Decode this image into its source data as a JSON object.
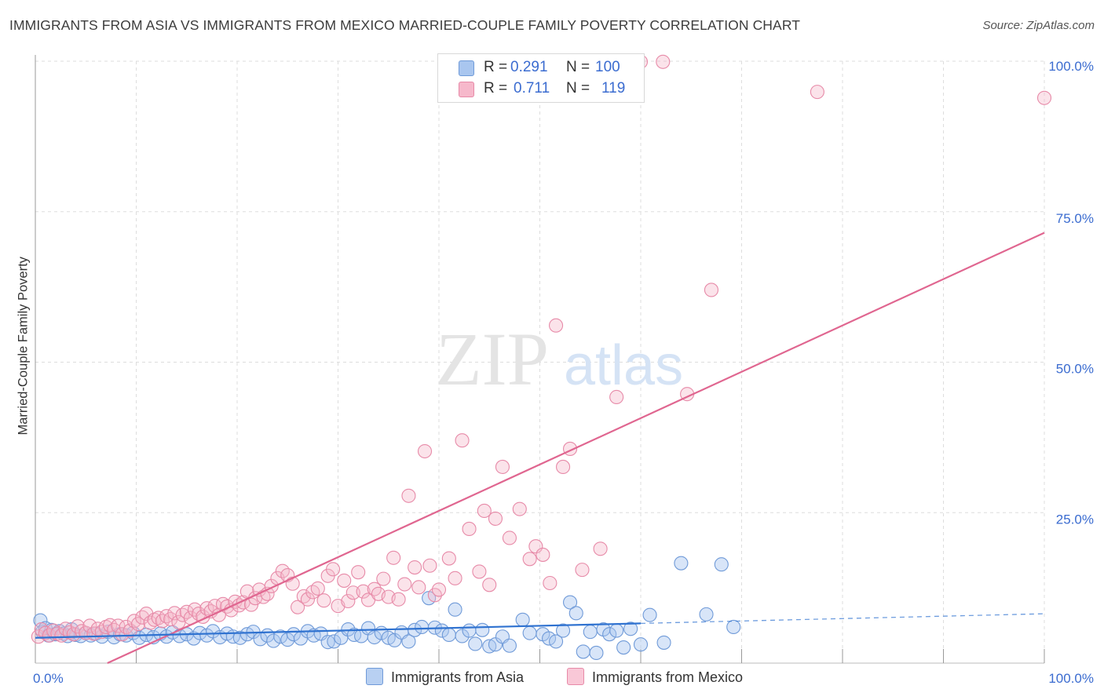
{
  "title": "IMMIGRANTS FROM ASIA VS IMMIGRANTS FROM MEXICO MARRIED-COUPLE FAMILY POVERTY CORRELATION CHART",
  "source": "Source: ZipAtlas.com",
  "watermark": {
    "zip": "ZIP",
    "atlas": "atlas"
  },
  "colors": {
    "asia_fill": "#a9c6ef",
    "asia_stroke": "#6f9ad8",
    "asia_line": "#2f72d0",
    "mexico_fill": "#f6b8cb",
    "mexico_stroke": "#e78aa8",
    "mexico_line": "#e06690",
    "tick_label": "#3b6cd0",
    "grid": "#dddddd"
  },
  "legend": {
    "rows": [
      {
        "r_label": "R =",
        "r_value": "0.291",
        "n_label": "N =",
        "n_value": "100"
      },
      {
        "r_label": "R =",
        "r_value": "0.711",
        "n_label": "N =",
        "n_value": "119"
      }
    ]
  },
  "bottom_legend": {
    "asia": "Immigrants from Asia",
    "mexico": "Immigrants from Mexico"
  },
  "chart_data": {
    "type": "scatter",
    "title": "IMMIGRANTS FROM ASIA VS IMMIGRANTS FROM MEXICO MARRIED-COUPLE FAMILY POVERTY CORRELATION CHART",
    "xlabel": "",
    "ylabel": "Married-Couple Family Poverty",
    "xlim": [
      0,
      100
    ],
    "ylim": [
      0,
      100
    ],
    "x_ticks": [
      "0.0%",
      "100.0%"
    ],
    "y_ticks": [
      {
        "value": 25,
        "label": "25.0%"
      },
      {
        "value": 50,
        "label": "50.0%"
      },
      {
        "value": 75,
        "label": "75.0%"
      },
      {
        "value": 100,
        "label": "100.0%"
      }
    ],
    "grid": true,
    "legend_position": "top-center",
    "series": [
      {
        "name": "Immigrants from Asia",
        "r": 0.291,
        "n": 100,
        "trend": {
          "x": [
            0,
            60
          ],
          "y": [
            4.2,
            6.6
          ],
          "dashed_to": [
            100,
            8.2
          ]
        },
        "points": [
          [
            0.5,
            7.1
          ],
          [
            0.7,
            5.2
          ],
          [
            1.0,
            5.8
          ],
          [
            1.3,
            4.6
          ],
          [
            1.6,
            5.5
          ],
          [
            2.0,
            4.8
          ],
          [
            2.4,
            5.3
          ],
          [
            2.8,
            4.9
          ],
          [
            3.2,
            4.5
          ],
          [
            3.6,
            5.6
          ],
          [
            4.0,
            4.7
          ],
          [
            4.5,
            4.5
          ],
          [
            5.0,
            5.0
          ],
          [
            5.5,
            4.6
          ],
          [
            6.0,
            4.9
          ],
          [
            6.6,
            4.4
          ],
          [
            7.2,
            5.2
          ],
          [
            7.8,
            4.3
          ],
          [
            8.4,
            4.8
          ],
          [
            9.0,
            4.6
          ],
          [
            9.7,
            5.0
          ],
          [
            10.3,
            4.2
          ],
          [
            11.0,
            4.7
          ],
          [
            11.7,
            4.3
          ],
          [
            12.4,
            4.9
          ],
          [
            13.0,
            4.4
          ],
          [
            13.6,
            5.1
          ],
          [
            14.3,
            4.5
          ],
          [
            15.0,
            4.8
          ],
          [
            15.7,
            4.1
          ],
          [
            16.3,
            5.0
          ],
          [
            17.0,
            4.6
          ],
          [
            17.6,
            5.3
          ],
          [
            18.3,
            4.3
          ],
          [
            19.0,
            4.9
          ],
          [
            19.6,
            4.4
          ],
          [
            20.3,
            4.2
          ],
          [
            21.0,
            4.8
          ],
          [
            21.6,
            5.2
          ],
          [
            22.3,
            4.0
          ],
          [
            23.0,
            4.6
          ],
          [
            23.6,
            3.7
          ],
          [
            24.3,
            4.4
          ],
          [
            25.0,
            3.9
          ],
          [
            25.6,
            4.8
          ],
          [
            26.3,
            4.1
          ],
          [
            27.0,
            5.3
          ],
          [
            27.6,
            4.6
          ],
          [
            28.3,
            4.9
          ],
          [
            29.0,
            3.5
          ],
          [
            29.6,
            3.6
          ],
          [
            30.3,
            4.2
          ],
          [
            31.0,
            5.6
          ],
          [
            31.6,
            4.7
          ],
          [
            32.3,
            4.5
          ],
          [
            33.0,
            5.8
          ],
          [
            33.6,
            4.3
          ],
          [
            34.3,
            5.0
          ],
          [
            35.0,
            4.2
          ],
          [
            35.6,
            3.8
          ],
          [
            36.3,
            5.1
          ],
          [
            37.0,
            3.6
          ],
          [
            37.6,
            5.5
          ],
          [
            38.3,
            6.0
          ],
          [
            39.0,
            10.8
          ],
          [
            39.6,
            5.9
          ],
          [
            40.3,
            5.4
          ],
          [
            41.0,
            4.7
          ],
          [
            41.6,
            8.9
          ],
          [
            42.3,
            4.5
          ],
          [
            43.0,
            5.4
          ],
          [
            43.6,
            3.2
          ],
          [
            44.3,
            5.5
          ],
          [
            45.0,
            2.8
          ],
          [
            45.6,
            3.1
          ],
          [
            46.3,
            4.4
          ],
          [
            47.0,
            2.9
          ],
          [
            48.3,
            7.2
          ],
          [
            49.0,
            5.0
          ],
          [
            50.3,
            4.8
          ],
          [
            50.9,
            4.1
          ],
          [
            51.6,
            3.6
          ],
          [
            52.3,
            5.4
          ],
          [
            53.0,
            10.1
          ],
          [
            53.6,
            8.3
          ],
          [
            54.3,
            1.9
          ],
          [
            55.0,
            5.2
          ],
          [
            55.6,
            1.7
          ],
          [
            56.3,
            5.6
          ],
          [
            56.9,
            4.8
          ],
          [
            57.6,
            5.4
          ],
          [
            58.3,
            2.6
          ],
          [
            59.0,
            5.7
          ],
          [
            60.0,
            3.1
          ],
          [
            60.9,
            8.0
          ],
          [
            62.3,
            3.4
          ],
          [
            64.0,
            16.6
          ],
          [
            66.5,
            8.1
          ],
          [
            68.0,
            16.4
          ],
          [
            69.2,
            6.0
          ]
        ]
      },
      {
        "name": "Immigrants from Mexico",
        "r": 0.711,
        "n": 119,
        "trend": {
          "x": [
            0,
            100
          ],
          "y": [
            -5.5,
            71.5
          ]
        },
        "points": [
          [
            0.3,
            4.4
          ],
          [
            0.6,
            5.6
          ],
          [
            1.0,
            5.0
          ],
          [
            1.4,
            4.6
          ],
          [
            1.8,
            5.4
          ],
          [
            2.2,
            4.9
          ],
          [
            2.6,
            4.6
          ],
          [
            3.0,
            5.7
          ],
          [
            3.4,
            5.1
          ],
          [
            3.8,
            4.8
          ],
          [
            4.2,
            6.1
          ],
          [
            4.6,
            5.3
          ],
          [
            5.0,
            5.0
          ],
          [
            5.4,
            6.2
          ],
          [
            5.8,
            4.9
          ],
          [
            6.2,
            5.7
          ],
          [
            6.6,
            5.2
          ],
          [
            7.0,
            6.0
          ],
          [
            7.4,
            6.3
          ],
          [
            7.8,
            5.5
          ],
          [
            8.2,
            6.2
          ],
          [
            8.6,
            4.8
          ],
          [
            9.0,
            6.0
          ],
          [
            9.4,
            5.4
          ],
          [
            9.8,
            7.0
          ],
          [
            10.2,
            6.5
          ],
          [
            10.6,
            7.6
          ],
          [
            11.0,
            8.2
          ],
          [
            11.4,
            6.7
          ],
          [
            11.8,
            7.2
          ],
          [
            12.2,
            7.5
          ],
          [
            12.6,
            7.0
          ],
          [
            13.0,
            7.8
          ],
          [
            13.4,
            7.3
          ],
          [
            13.8,
            8.3
          ],
          [
            14.2,
            6.8
          ],
          [
            14.6,
            8.0
          ],
          [
            15.0,
            8.5
          ],
          [
            15.4,
            7.5
          ],
          [
            15.8,
            8.9
          ],
          [
            16.2,
            8.2
          ],
          [
            16.6,
            7.7
          ],
          [
            17.0,
            9.1
          ],
          [
            17.4,
            8.6
          ],
          [
            17.8,
            9.5
          ],
          [
            18.2,
            8.0
          ],
          [
            18.6,
            9.8
          ],
          [
            19.0,
            9.4
          ],
          [
            19.4,
            8.8
          ],
          [
            19.8,
            10.2
          ],
          [
            20.2,
            9.6
          ],
          [
            20.6,
            10.1
          ],
          [
            21.0,
            11.9
          ],
          [
            21.4,
            9.7
          ],
          [
            21.8,
            10.8
          ],
          [
            22.2,
            12.2
          ],
          [
            22.6,
            11.0
          ],
          [
            23.0,
            11.5
          ],
          [
            23.4,
            12.8
          ],
          [
            24.0,
            14.1
          ],
          [
            24.5,
            15.3
          ],
          [
            25.0,
            14.6
          ],
          [
            25.5,
            13.2
          ],
          [
            26.0,
            9.3
          ],
          [
            26.6,
            11.1
          ],
          [
            27.0,
            10.6
          ],
          [
            27.5,
            11.8
          ],
          [
            28.0,
            12.4
          ],
          [
            28.6,
            10.4
          ],
          [
            29.0,
            14.5
          ],
          [
            29.5,
            15.6
          ],
          [
            30.0,
            9.5
          ],
          [
            30.6,
            13.7
          ],
          [
            31.0,
            10.3
          ],
          [
            31.5,
            11.7
          ],
          [
            32.0,
            15.1
          ],
          [
            32.5,
            11.9
          ],
          [
            33.0,
            10.5
          ],
          [
            33.6,
            12.3
          ],
          [
            34.0,
            11.5
          ],
          [
            34.5,
            14.0
          ],
          [
            35.0,
            11.0
          ],
          [
            35.5,
            17.5
          ],
          [
            36.0,
            10.6
          ],
          [
            36.6,
            13.1
          ],
          [
            37.0,
            27.8
          ],
          [
            37.6,
            15.9
          ],
          [
            38.0,
            12.6
          ],
          [
            38.6,
            35.2
          ],
          [
            39.1,
            16.2
          ],
          [
            39.6,
            11.3
          ],
          [
            40.0,
            12.2
          ],
          [
            41.0,
            17.4
          ],
          [
            41.6,
            14.1
          ],
          [
            42.3,
            37.0
          ],
          [
            43.0,
            22.3
          ],
          [
            44.0,
            15.2
          ],
          [
            44.5,
            25.3
          ],
          [
            45.0,
            13.0
          ],
          [
            45.6,
            24.0
          ],
          [
            46.3,
            32.6
          ],
          [
            47.0,
            20.8
          ],
          [
            48.0,
            25.6
          ],
          [
            49.0,
            17.3
          ],
          [
            49.6,
            19.4
          ],
          [
            50.3,
            18.0
          ],
          [
            51.0,
            13.3
          ],
          [
            51.6,
            56.1
          ],
          [
            52.3,
            32.6
          ],
          [
            53.0,
            35.6
          ],
          [
            54.2,
            15.5
          ],
          [
            56.0,
            19.0
          ],
          [
            57.6,
            44.2
          ],
          [
            60.0,
            99.9
          ],
          [
            62.2,
            99.9
          ],
          [
            64.6,
            44.7
          ],
          [
            67.0,
            62.0
          ],
          [
            77.5,
            94.9
          ],
          [
            100.0,
            93.9
          ]
        ]
      }
    ]
  }
}
